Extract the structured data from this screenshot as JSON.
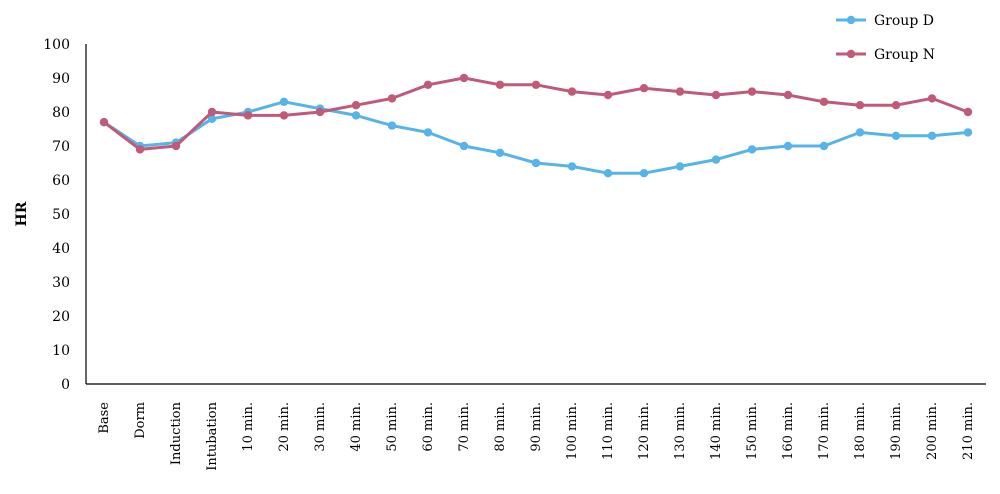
{
  "chart_data": {
    "type": "line",
    "title": "",
    "xlabel": "",
    "ylabel": "HR",
    "ylim": [
      0,
      100
    ],
    "yticks": [
      0,
      10,
      20,
      30,
      40,
      50,
      60,
      70,
      80,
      90,
      100
    ],
    "grid": false,
    "legend_position": "top-right",
    "categories": [
      "Base",
      "Dorm",
      "Induction",
      "Intubation",
      "10 min.",
      "20 min.",
      "30 min.",
      "40 min.",
      "50 min.",
      "60 min.",
      "70 min.",
      "80 min.",
      "90 min.",
      "100 min.",
      "110 min.",
      "120 min.",
      "130 min.",
      "140 min.",
      "150 min.",
      "160 min.",
      "170 min.",
      "180 min.",
      "190 min.",
      "200 min.",
      "210 min."
    ],
    "series": [
      {
        "name": "Group D",
        "color": "#56b4e9",
        "values": [
          77,
          70,
          71,
          78,
          80,
          83,
          81,
          79,
          76,
          74,
          70,
          68,
          65,
          64,
          62,
          62,
          64,
          66,
          69,
          70,
          70,
          74,
          73,
          73,
          74
        ]
      },
      {
        "name": "Group N",
        "color": "#c05a78",
        "values": [
          77,
          69,
          70,
          80,
          79,
          79,
          80,
          82,
          84,
          88,
          90,
          88,
          88,
          86,
          85,
          87,
          86,
          85,
          86,
          85,
          83,
          82,
          82,
          84,
          80
        ]
      }
    ]
  }
}
